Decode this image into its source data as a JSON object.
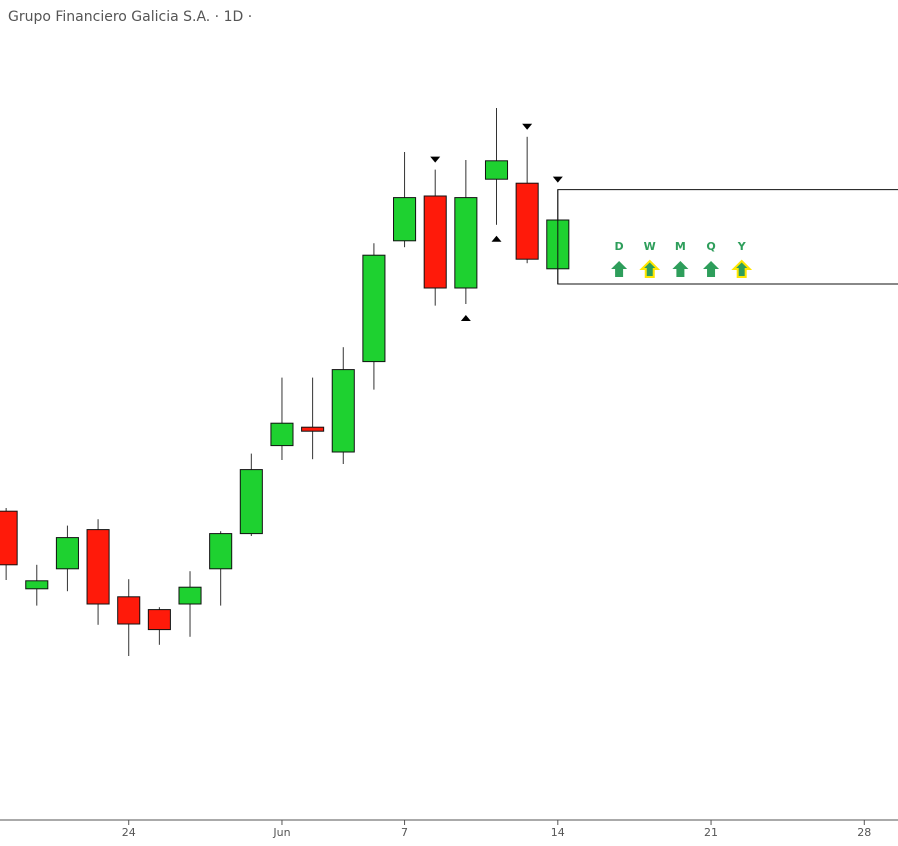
{
  "chart_data": {
    "type": "candlestick",
    "title": "Grupo Financiero Galicia S.A. · 1D ·",
    "x": [
      0,
      1,
      2,
      3,
      4,
      5,
      6,
      7,
      8,
      9,
      10,
      11,
      12,
      13,
      14,
      15,
      16,
      17,
      18
    ],
    "open": [
      38.6,
      28.9,
      31.4,
      36.3,
      27.9,
      26.3,
      27,
      31.4,
      35.8,
      46.8,
      49.1,
      46,
      57.3,
      72.4,
      78,
      66.5,
      80.1,
      79.6,
      68.9
    ],
    "high": [
      39,
      31.9,
      36.8,
      37.6,
      30.1,
      26.6,
      31.1,
      36.1,
      45.8,
      55.3,
      55.3,
      59.1,
      72.1,
      83.5,
      81.3,
      82.5,
      89,
      85.4,
      78.8
    ],
    "low": [
      30,
      26.8,
      28.6,
      24.4,
      20.5,
      21.9,
      22.9,
      26.8,
      35.5,
      45,
      45.1,
      44.5,
      53.8,
      71.6,
      64.3,
      64.5,
      74.4,
      69.6,
      67
    ],
    "close": [
      31.9,
      29.9,
      35.3,
      27,
      24.5,
      23.8,
      29.1,
      35.8,
      43.8,
      49.6,
      48.6,
      56.3,
      70.6,
      77.8,
      66.5,
      77.8,
      82.4,
      70.1,
      75
    ],
    "up_color": "#1ed130",
    "down_color": "#ff1a0a",
    "xlim": [
      -0.2,
      29.1
    ],
    "ylim": [
      0,
      100
    ],
    "xticks": [
      {
        "value": 4,
        "label": "24"
      },
      {
        "value": 9,
        "label": "Jun"
      },
      {
        "value": 13,
        "label": "7"
      },
      {
        "value": 18,
        "label": "14"
      },
      {
        "value": 23,
        "label": "21"
      },
      {
        "value": 28,
        "label": "28"
      }
    ],
    "markers": [
      {
        "x": 14,
        "position": "above"
      },
      {
        "x": 17,
        "position": "above"
      },
      {
        "x": 18,
        "position": "above"
      },
      {
        "x": 15,
        "position": "below"
      },
      {
        "x": 16,
        "position": "below"
      }
    ],
    "signals": [
      {
        "label": "D",
        "highlight": false
      },
      {
        "label": "W",
        "highlight": true
      },
      {
        "label": "M",
        "highlight": false
      },
      {
        "label": "Q",
        "highlight": false
      },
      {
        "label": "Y",
        "highlight": true
      }
    ],
    "signal_color": "#2e9e5b"
  }
}
